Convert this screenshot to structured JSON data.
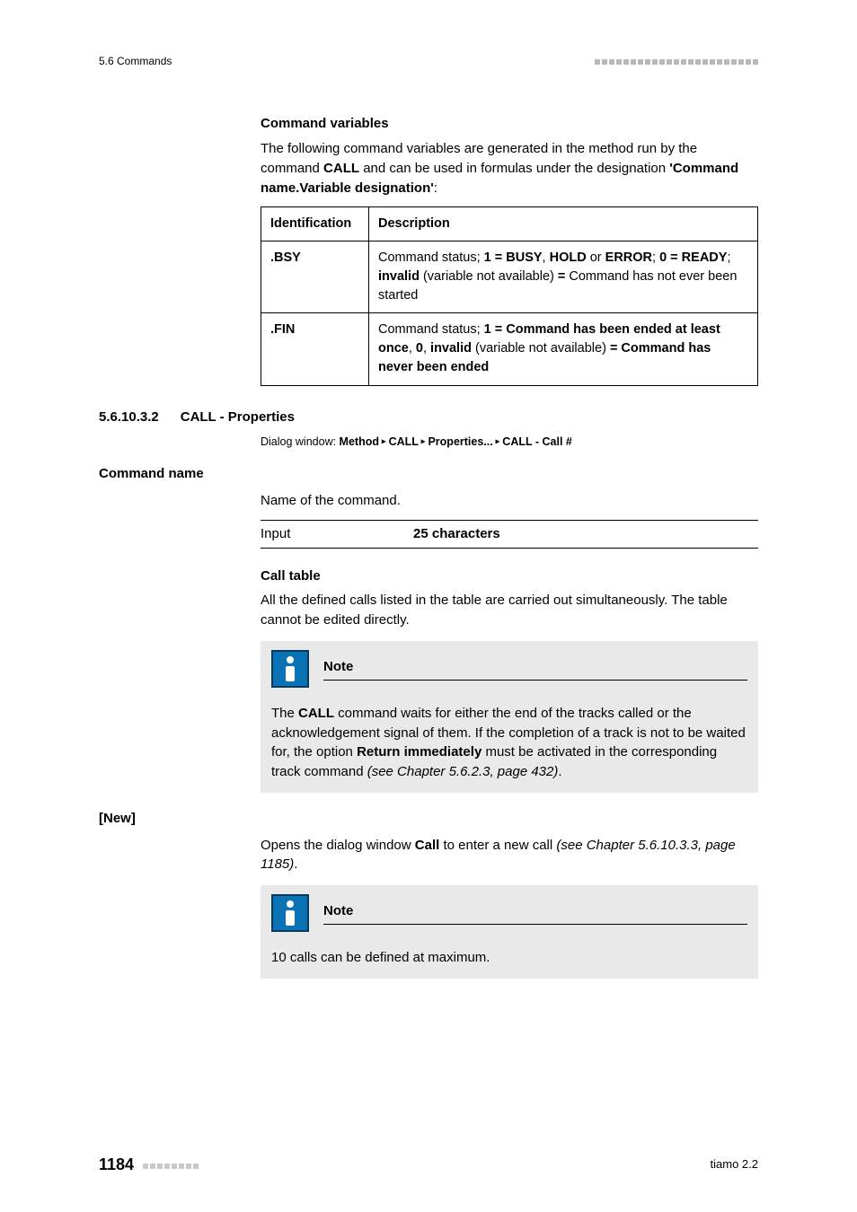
{
  "header": {
    "breadcrumb": "5.6 Commands",
    "decor_dot_count": 23,
    "decor_dot_color": "#b8b8b8"
  },
  "cmd_vars": {
    "heading": "Command variables",
    "intro_pre": "The following command variables are generated in the method run by the command ",
    "intro_bold1": "CALL",
    "intro_mid": " and can be used in formulas under the designation ",
    "intro_bold2": "'Command name.Variable designation'",
    "intro_post": ":",
    "table": {
      "col1_header": "Identification",
      "col2_header": "Description",
      "rows": [
        {
          "id": ".BSY",
          "desc_parts": [
            {
              "t": "Command status; ",
              "b": false
            },
            {
              "t": "1 = BUSY",
              "b": true
            },
            {
              "t": ", ",
              "b": false
            },
            {
              "t": "HOLD",
              "b": true
            },
            {
              "t": " or ",
              "b": false
            },
            {
              "t": "ERROR",
              "b": true
            },
            {
              "t": "; ",
              "b": false
            },
            {
              "t": "0 = READY",
              "b": true
            },
            {
              "t": "; ",
              "b": false
            },
            {
              "t": "invalid",
              "b": true
            },
            {
              "t": " (variable not available) ",
              "b": false
            },
            {
              "t": "=",
              "b": true
            },
            {
              "t": " Command has not ever been started",
              "b": false
            }
          ]
        },
        {
          "id": ".FIN",
          "desc_parts": [
            {
              "t": "Command status; ",
              "b": false
            },
            {
              "t": "1 = Command has been ended at least once",
              "b": true
            },
            {
              "t": ", ",
              "b": false
            },
            {
              "t": "0",
              "b": true
            },
            {
              "t": ", ",
              "b": false
            },
            {
              "t": "invalid",
              "b": true
            },
            {
              "t": " (variable not available) ",
              "b": false
            },
            {
              "t": "= Command has never been ended",
              "b": true
            }
          ]
        }
      ]
    }
  },
  "section": {
    "number": "5.6.10.3.2",
    "title": "CALL - Properties",
    "dialog_prefix": "Dialog window: ",
    "dialog_parts": [
      "Method",
      "CALL",
      "Properties...",
      "CALL - Call #"
    ]
  },
  "command_name": {
    "label": "Command name",
    "desc": "Name of the command.",
    "input_label": "Input",
    "input_value": "25 characters"
  },
  "call_table": {
    "heading": "Call table",
    "desc": "All the defined calls listed in the table are carried out simultaneously. The table cannot be edited directly."
  },
  "note1": {
    "title": "Note",
    "body_parts": [
      {
        "t": "The ",
        "b": false,
        "i": false
      },
      {
        "t": "CALL",
        "b": true,
        "i": false
      },
      {
        "t": " command waits for either the end of the tracks called or the acknowledgement signal of them. If the completion of a track is not to be waited for, the option ",
        "b": false,
        "i": false
      },
      {
        "t": "Return immediately",
        "b": true,
        "i": false
      },
      {
        "t": " must be activated in the corresponding track command ",
        "b": false,
        "i": false
      },
      {
        "t": "(see Chapter 5.6.2.3, page 432)",
        "b": false,
        "i": true
      },
      {
        "t": ".",
        "b": false,
        "i": false
      }
    ]
  },
  "new_btn": {
    "label": "[New]",
    "body_parts": [
      {
        "t": "Opens the dialog window ",
        "b": false,
        "i": false
      },
      {
        "t": "Call",
        "b": true,
        "i": false
      },
      {
        "t": " to enter a new call ",
        "b": false,
        "i": false
      },
      {
        "t": "(see Chapter 5.6.10.3.3, page 1185)",
        "b": false,
        "i": true
      },
      {
        "t": ".",
        "b": false,
        "i": false
      }
    ]
  },
  "note2": {
    "title": "Note",
    "body": "10 calls can be defined at maximum."
  },
  "footer": {
    "page": "1184",
    "decor_dot_count": 8,
    "decor_dot_color": "#c9c9c9",
    "product": "tiamo 2.2"
  },
  "colors": {
    "note_bg": "#e9e9e9",
    "note_icon_bg": "#0b72b5",
    "note_icon_border": "#063a5c"
  }
}
